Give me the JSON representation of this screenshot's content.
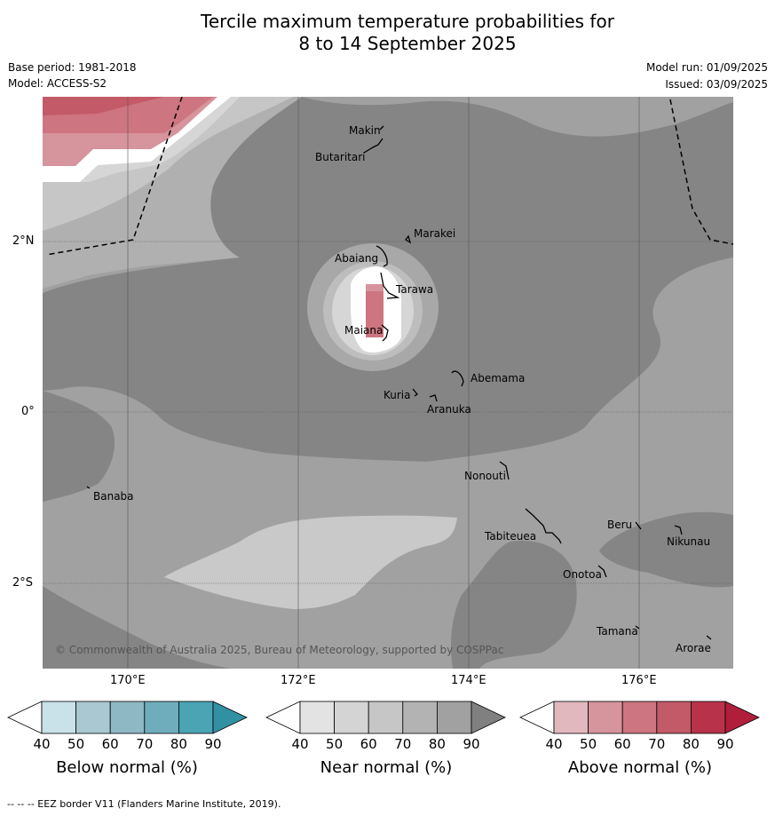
{
  "title_line1": "Tercile maximum temperature probabilities for",
  "title_line2": "8 to 14 September 2025",
  "base_period": "Base period: 1981-2018",
  "model": "Model: ACCESS-S2",
  "model_run": "Model run: 01/09/2025",
  "issued": "Issued: 03/09/2025",
  "copyright": "© Commonwealth of Australia 2025, Bureau of Meteorology, supported by COSPPac",
  "footer": "--  --  -- EEZ border V11 (Flanders Marine Institute, 2019).",
  "lat_labels": [
    "2°N",
    "0°",
    "2°S"
  ],
  "lon_labels": [
    "170°E",
    "172°E",
    "174°E",
    "176°E"
  ],
  "places": [
    "Makin",
    "Butaritari",
    "Marakei",
    "Abaiang",
    "Tarawa",
    "Maiana",
    "Abemama",
    "Kuria",
    "Aranuka",
    "Nonouti",
    "Banaba",
    "Tabiteuea",
    "Beru",
    "Nikunau",
    "Onotoa",
    "Tamana",
    "Arorae"
  ],
  "colorbars": [
    {
      "label": "Below normal (%)",
      "ticks": [
        "40",
        "50",
        "60",
        "70",
        "80",
        "90"
      ],
      "colors": [
        "#ffffff",
        "#c9e1e9",
        "#a9c8d1",
        "#8eb8c4",
        "#6fadbc",
        "#4aa4b4",
        "#3191a3"
      ]
    },
    {
      "label": "Near normal (%)",
      "ticks": [
        "40",
        "50",
        "60",
        "70",
        "80",
        "90"
      ],
      "colors": [
        "#ffffff",
        "#e3e3e3",
        "#d4d4d4",
        "#c6c6c6",
        "#b3b3b3",
        "#a1a1a1",
        "#808080"
      ]
    },
    {
      "label": "Above normal (%)",
      "ticks": [
        "40",
        "50",
        "60",
        "70",
        "80",
        "90"
      ],
      "colors": [
        "#ffffff",
        "#e1b8be",
        "#d6949c",
        "#cd7580",
        "#c35a67",
        "#b8334a",
        "#b01e3c"
      ]
    }
  ]
}
